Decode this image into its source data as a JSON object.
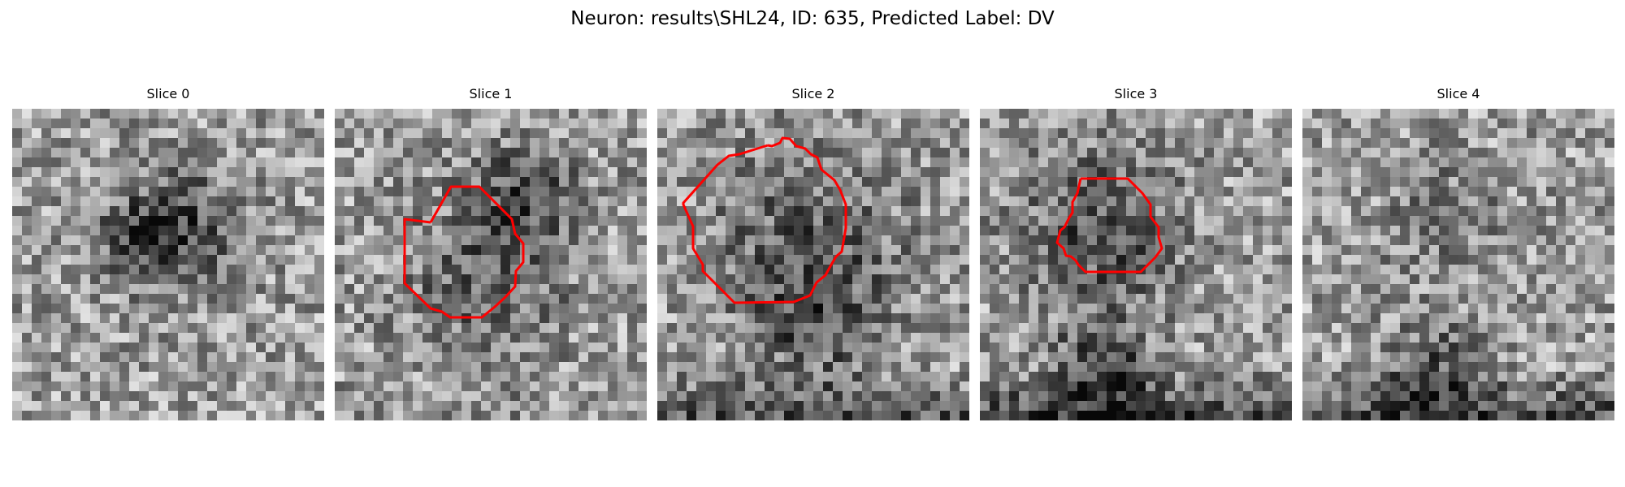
{
  "figure": {
    "suptitle": "Neuron: results\\SHL24, ID: 635, Predicted Label: DV",
    "contour_color": "#ff0000",
    "panels": [
      {
        "title": "Slice 0",
        "has_contour": false
      },
      {
        "title": "Slice 1",
        "has_contour": true
      },
      {
        "title": "Slice 2",
        "has_contour": true
      },
      {
        "title": "Slice 3",
        "has_contour": true
      },
      {
        "title": "Slice 4",
        "has_contour": false
      }
    ]
  }
}
